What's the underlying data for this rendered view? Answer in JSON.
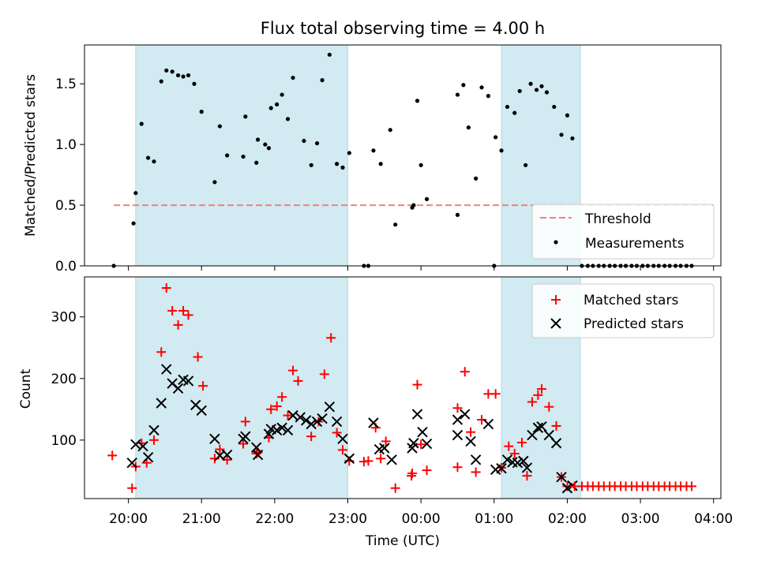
{
  "chart_data": {
    "type": "scatter",
    "title": "Flux total observing time = 4.00 h",
    "xlabel": "Time (UTC)",
    "x_unit": "hours (UTC), values above 24 fall after midnight",
    "xlim": [
      19.4,
      28.1
    ],
    "xticks": [
      20,
      21,
      22,
      23,
      24,
      25,
      26,
      27,
      28
    ],
    "xtick_labels": [
      "20:00",
      "21:00",
      "22:00",
      "23:00",
      "00:00",
      "01:00",
      "02:00",
      "03:00",
      "04:00"
    ],
    "shaded_intervals": [
      [
        20.1,
        23.0
      ],
      [
        25.1,
        26.18
      ]
    ],
    "shade_color": "#add8e6",
    "panels": [
      {
        "ylabel": "Matched/Predicted stars",
        "ylim": [
          0,
          1.82
        ],
        "yticks": [
          0.0,
          0.5,
          1.0,
          1.5
        ],
        "ytick_labels": [
          "0.0",
          "0.5",
          "1.0",
          "1.5"
        ],
        "legend_position": "lower right",
        "threshold": {
          "name": "Threshold",
          "value": 0.5,
          "x_range": [
            19.8,
            28.0
          ],
          "color": "#f08080"
        },
        "series": [
          {
            "name": "Measurements",
            "color": "#000000",
            "points": [
              [
                19.8,
                0.0
              ],
              [
                20.07,
                0.35
              ],
              [
                20.1,
                0.6
              ],
              [
                20.18,
                1.17
              ],
              [
                20.27,
                0.89
              ],
              [
                20.35,
                0.86
              ],
              [
                20.45,
                1.52
              ],
              [
                20.52,
                1.61
              ],
              [
                20.6,
                1.6
              ],
              [
                20.68,
                1.57
              ],
              [
                20.75,
                1.56
              ],
              [
                20.82,
                1.57
              ],
              [
                20.9,
                1.5
              ],
              [
                21.0,
                1.27
              ],
              [
                21.18,
                0.69
              ],
              [
                21.25,
                1.15
              ],
              [
                21.35,
                0.91
              ],
              [
                21.57,
                0.9
              ],
              [
                21.6,
                1.23
              ],
              [
                21.75,
                0.85
              ],
              [
                21.77,
                1.04
              ],
              [
                21.87,
                1.0
              ],
              [
                21.92,
                0.97
              ],
              [
                21.95,
                1.3
              ],
              [
                22.03,
                1.33
              ],
              [
                22.1,
                1.41
              ],
              [
                22.18,
                1.21
              ],
              [
                22.25,
                1.55
              ],
              [
                22.4,
                1.03
              ],
              [
                22.5,
                0.83
              ],
              [
                22.58,
                1.01
              ],
              [
                22.65,
                1.53
              ],
              [
                22.75,
                1.74
              ],
              [
                22.85,
                0.84
              ],
              [
                22.93,
                0.81
              ],
              [
                23.02,
                0.93
              ],
              [
                23.22,
                0.0
              ],
              [
                23.28,
                0.0
              ],
              [
                23.35,
                0.95
              ],
              [
                23.45,
                0.84
              ],
              [
                23.58,
                1.12
              ],
              [
                23.65,
                0.34
              ],
              [
                23.88,
                0.48
              ],
              [
                23.9,
                0.5
              ],
              [
                23.95,
                1.36
              ],
              [
                24.0,
                0.83
              ],
              [
                24.08,
                0.55
              ],
              [
                24.5,
                0.42
              ],
              [
                24.5,
                1.41
              ],
              [
                24.58,
                1.49
              ],
              [
                24.65,
                1.14
              ],
              [
                24.75,
                0.72
              ],
              [
                24.83,
                1.47
              ],
              [
                24.92,
                1.4
              ],
              [
                25.0,
                0.0
              ],
              [
                25.02,
                1.06
              ],
              [
                25.1,
                0.95
              ],
              [
                25.18,
                1.31
              ],
              [
                25.28,
                1.26
              ],
              [
                25.35,
                1.44
              ],
              [
                25.43,
                0.83
              ],
              [
                25.5,
                1.5
              ],
              [
                25.58,
                1.45
              ],
              [
                25.65,
                1.48
              ],
              [
                25.72,
                1.43
              ],
              [
                25.82,
                1.31
              ],
              [
                25.92,
                1.08
              ],
              [
                26.0,
                1.24
              ],
              [
                26.07,
                1.05
              ],
              [
                26.2,
                0.0
              ],
              [
                26.28,
                0.0
              ],
              [
                26.35,
                0.0
              ],
              [
                26.43,
                0.0
              ],
              [
                26.5,
                0.0
              ],
              [
                26.58,
                0.0
              ],
              [
                26.65,
                0.0
              ],
              [
                26.73,
                0.0
              ],
              [
                26.8,
                0.0
              ],
              [
                26.88,
                0.0
              ],
              [
                26.95,
                0.0
              ],
              [
                27.03,
                0.0
              ],
              [
                27.1,
                0.0
              ],
              [
                27.18,
                0.0
              ],
              [
                27.25,
                0.0
              ],
              [
                27.33,
                0.0
              ],
              [
                27.4,
                0.0
              ],
              [
                27.48,
                0.0
              ],
              [
                27.55,
                0.0
              ],
              [
                27.63,
                0.0
              ],
              [
                27.7,
                0.0
              ]
            ]
          }
        ]
      },
      {
        "ylabel": "Count",
        "ylim": [
          5,
          365
        ],
        "yticks": [
          100,
          200,
          300
        ],
        "ytick_labels": [
          "100",
          "200",
          "300"
        ],
        "legend_position": "upper right",
        "series": [
          {
            "name": "Matched stars",
            "color": "#ff0000",
            "marker": "plus",
            "points": [
              [
                19.78,
                75
              ],
              [
                20.05,
                22
              ],
              [
                20.1,
                57
              ],
              [
                20.18,
                95
              ],
              [
                20.25,
                63
              ],
              [
                20.35,
                100
              ],
              [
                20.45,
                243
              ],
              [
                20.52,
                347
              ],
              [
                20.6,
                310
              ],
              [
                20.68,
                287
              ],
              [
                20.75,
                310
              ],
              [
                20.82,
                303
              ],
              [
                20.95,
                235
              ],
              [
                21.02,
                188
              ],
              [
                21.18,
                70
              ],
              [
                21.25,
                85
              ],
              [
                21.35,
                68
              ],
              [
                21.57,
                94
              ],
              [
                21.6,
                130
              ],
              [
                21.75,
                78
              ],
              [
                21.77,
                80
              ],
              [
                21.92,
                104
              ],
              [
                21.95,
                150
              ],
              [
                22.03,
                155
              ],
              [
                22.1,
                170
              ],
              [
                22.18,
                140
              ],
              [
                22.25,
                213
              ],
              [
                22.32,
                196
              ],
              [
                22.5,
                106
              ],
              [
                22.6,
                130
              ],
              [
                22.68,
                207
              ],
              [
                22.77,
                266
              ],
              [
                22.85,
                112
              ],
              [
                22.93,
                84
              ],
              [
                23.02,
                66
              ],
              [
                23.22,
                65
              ],
              [
                23.28,
                66
              ],
              [
                23.38,
                120
              ],
              [
                23.45,
                70
              ],
              [
                23.52,
                98
              ],
              [
                23.65,
                22
              ],
              [
                23.87,
                42
              ],
              [
                23.88,
                46
              ],
              [
                23.95,
                190
              ],
              [
                24.0,
                93
              ],
              [
                24.08,
                51
              ],
              [
                24.5,
                56
              ],
              [
                24.5,
                152
              ],
              [
                24.6,
                211
              ],
              [
                24.68,
                113
              ],
              [
                24.75,
                48
              ],
              [
                24.83,
                133
              ],
              [
                24.92,
                175
              ],
              [
                25.02,
                175
              ],
              [
                25.1,
                55
              ],
              [
                25.2,
                90
              ],
              [
                25.28,
                78
              ],
              [
                25.38,
                96
              ],
              [
                25.45,
                42
              ],
              [
                25.52,
                162
              ],
              [
                25.6,
                173
              ],
              [
                25.65,
                183
              ],
              [
                25.75,
                154
              ],
              [
                25.85,
                123
              ],
              [
                25.92,
                40
              ],
              [
                26.0,
                25
              ]
            ]
          },
          {
            "name": "Predicted stars",
            "color": "#000000",
            "marker": "x",
            "points": [
              [
                20.05,
                63
              ],
              [
                20.1,
                93
              ],
              [
                20.2,
                90
              ],
              [
                20.27,
                72
              ],
              [
                20.35,
                116
              ],
              [
                20.45,
                160
              ],
              [
                20.52,
                215
              ],
              [
                20.6,
                192
              ],
              [
                20.68,
                184
              ],
              [
                20.75,
                198
              ],
              [
                20.82,
                196
              ],
              [
                20.92,
                157
              ],
              [
                21.0,
                148
              ],
              [
                21.18,
                102
              ],
              [
                21.25,
                75
              ],
              [
                21.35,
                76
              ],
              [
                21.57,
                102
              ],
              [
                21.6,
                106
              ],
              [
                21.75,
                88
              ],
              [
                21.77,
                76
              ],
              [
                21.92,
                110
              ],
              [
                21.95,
                118
              ],
              [
                22.03,
                116
              ],
              [
                22.1,
                120
              ],
              [
                22.18,
                116
              ],
              [
                22.25,
                140
              ],
              [
                22.35,
                137
              ],
              [
                22.43,
                132
              ],
              [
                22.5,
                126
              ],
              [
                22.58,
                130
              ],
              [
                22.65,
                135
              ],
              [
                22.75,
                154
              ],
              [
                22.85,
                130
              ],
              [
                22.93,
                102
              ],
              [
                23.02,
                70
              ],
              [
                23.35,
                128
              ],
              [
                23.43,
                85
              ],
              [
                23.5,
                87
              ],
              [
                23.6,
                68
              ],
              [
                23.88,
                87
              ],
              [
                23.9,
                95
              ],
              [
                23.95,
                142
              ],
              [
                24.02,
                113
              ],
              [
                24.08,
                94
              ],
              [
                24.5,
                108
              ],
              [
                24.5,
                133
              ],
              [
                24.6,
                142
              ],
              [
                24.68,
                98
              ],
              [
                24.75,
                68
              ],
              [
                24.92,
                126
              ],
              [
                25.02,
                52
              ],
              [
                25.1,
                54
              ],
              [
                25.18,
                68
              ],
              [
                25.25,
                64
              ],
              [
                25.32,
                63
              ],
              [
                25.4,
                66
              ],
              [
                25.45,
                55
              ],
              [
                25.52,
                108
              ],
              [
                25.6,
                120
              ],
              [
                25.65,
                122
              ],
              [
                25.75,
                108
              ],
              [
                25.85,
                95
              ],
              [
                25.92,
                40
              ],
              [
                26.0,
                22
              ],
              [
                26.07,
                26
              ]
            ]
          }
        ],
        "flat_series": {
          "series_name": "Matched stars",
          "value": 25,
          "x": [
            26.1,
            26.2,
            26.28,
            26.35,
            26.43,
            26.5,
            26.58,
            26.65,
            26.73,
            26.8,
            26.88,
            26.95,
            27.03,
            27.1,
            27.18,
            27.25,
            27.33,
            27.4,
            27.48,
            27.55,
            27.63,
            27.7
          ]
        }
      }
    ]
  }
}
